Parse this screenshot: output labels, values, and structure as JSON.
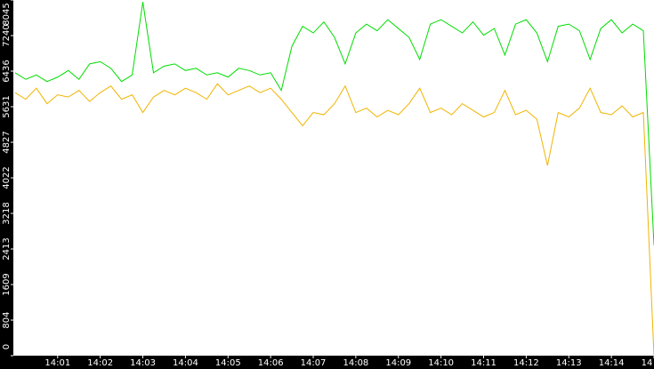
{
  "chart_data": {
    "type": "line",
    "x": [
      840,
      840.25,
      840.5,
      840.75,
      841,
      841.25,
      841.5,
      841.75,
      842,
      842.25,
      842.5,
      842.75,
      843,
      843.25,
      843.5,
      843.75,
      844,
      844.25,
      844.5,
      844.75,
      845,
      845.25,
      845.5,
      845.75,
      846,
      846.25,
      846.5,
      846.75,
      847,
      847.25,
      847.5,
      847.75,
      848,
      848.25,
      848.5,
      848.75,
      849,
      849.25,
      849.5,
      849.75,
      850,
      850.25,
      850.5,
      850.75,
      851,
      851.25,
      851.5,
      851.75,
      852,
      852.25,
      852.5,
      852.75,
      853,
      853.25,
      853.5,
      853.75,
      854,
      854.25,
      854.5,
      854.75,
      855
    ],
    "series": [
      {
        "color": "#00dd00",
        "values": [
          6400,
          6250,
          6350,
          6200,
          6300,
          6450,
          6250,
          6600,
          6650,
          6500,
          6200,
          6350,
          8000,
          6400,
          6550,
          6600,
          6450,
          6500,
          6350,
          6400,
          6300,
          6500,
          6450,
          6350,
          6400,
          6000,
          7000,
          7450,
          7300,
          7550,
          7200,
          6600,
          7300,
          7500,
          7350,
          7600,
          7400,
          7200,
          6700,
          7500,
          7600,
          7450,
          7300,
          7550,
          7250,
          7400,
          6800,
          7500,
          7600,
          7300,
          6650,
          7450,
          7500,
          7350,
          6700,
          7400,
          7600,
          7300,
          7500,
          7350,
          2500
        ]
      },
      {
        "color": "#f0b400",
        "values": [
          5950,
          5800,
          6050,
          5700,
          5900,
          5850,
          6000,
          5750,
          5950,
          6100,
          5800,
          5900,
          5500,
          5850,
          6000,
          5900,
          6050,
          5950,
          5800,
          6150,
          5900,
          6000,
          6100,
          5950,
          6050,
          5800,
          5500,
          5200,
          5500,
          5450,
          5700,
          6100,
          5500,
          5600,
          5400,
          5550,
          5450,
          5700,
          6050,
          5500,
          5600,
          5450,
          5700,
          5550,
          5400,
          5500,
          6000,
          5450,
          5550,
          5350,
          4300,
          5500,
          5400,
          5600,
          6050,
          5500,
          5450,
          5650,
          5400,
          5500,
          0
        ]
      }
    ],
    "xlim": [
      839.96,
      855
    ],
    "xticks": [
      {
        "value": 841,
        "label": "14:01"
      },
      {
        "value": 842,
        "label": "14:02"
      },
      {
        "value": 843,
        "label": "14:03"
      },
      {
        "value": 844,
        "label": "14:04"
      },
      {
        "value": 845,
        "label": "14:05"
      },
      {
        "value": 846,
        "label": "14:06"
      },
      {
        "value": 847,
        "label": "14:07"
      },
      {
        "value": 848,
        "label": "14:08"
      },
      {
        "value": 849,
        "label": "14:09"
      },
      {
        "value": 850,
        "label": "14:10"
      },
      {
        "value": 851,
        "label": "14:11"
      },
      {
        "value": 852,
        "label": "14:12"
      },
      {
        "value": 853,
        "label": "14:13"
      },
      {
        "value": 854,
        "label": "14:14"
      },
      {
        "value": 855,
        "label": "14"
      }
    ],
    "ylim": [
      0,
      8045
    ],
    "yticks": [
      0,
      804,
      1609,
      2413,
      3218,
      4022,
      4827,
      5631,
      6436,
      7240,
      8045
    ]
  }
}
